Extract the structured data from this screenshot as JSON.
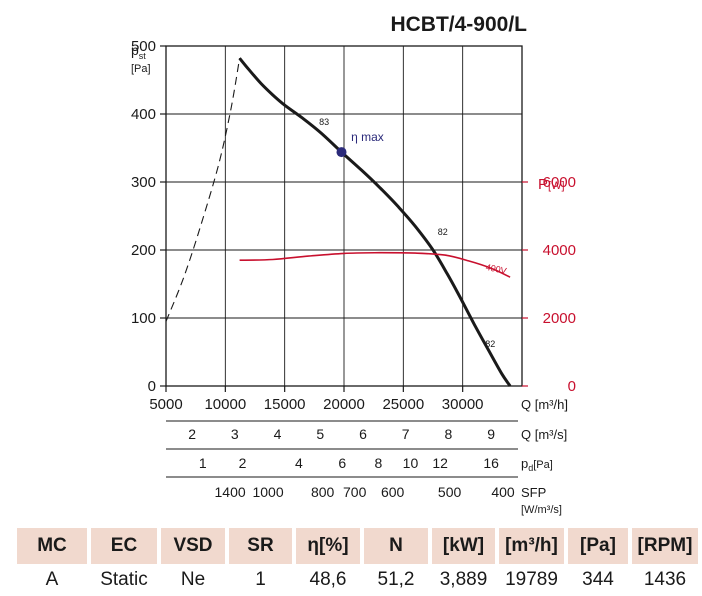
{
  "colors": {
    "curve": "#1a1a1a",
    "power": "#c8102e",
    "eta_point": "#2b2a7a",
    "table_header_bg": "#f1d9ce"
  },
  "chart_data": {
    "type": "line",
    "title": "HCBT/4-900/L",
    "ylabel": {
      "main": "p",
      "sub": "st",
      "unit": "[Pa]"
    },
    "y2label": {
      "main": "P",
      "unit": "[W]"
    },
    "xlim": [
      5000,
      35000
    ],
    "ylim": [
      0,
      500
    ],
    "y2lim": [
      0,
      10000
    ],
    "x_ticks": [
      5000,
      10000,
      15000,
      20000,
      25000,
      30000
    ],
    "x_tick_labels": [
      "5000",
      "10000",
      "15000",
      "20000",
      "25000",
      "30000"
    ],
    "x_unit_label": "Q [m³/h]",
    "y_ticks": [
      0,
      100,
      200,
      300,
      400,
      500
    ],
    "y_tick_labels": [
      "0",
      "100",
      "200",
      "300",
      "400",
      "500"
    ],
    "y2_ticks": [
      0,
      2000,
      4000,
      6000
    ],
    "y2_tick_labels": [
      "0",
      "2000",
      "4000",
      "6000"
    ],
    "grid": true,
    "series": [
      {
        "role": "pressure-curve",
        "x": [
          11200,
          12000,
          13000,
          14000,
          15000,
          16500,
          18000,
          19789,
          21500,
          23000,
          24500,
          26000,
          27500,
          28700,
          29800,
          31000,
          32200,
          33300,
          34000
        ],
        "y": [
          482,
          465,
          445,
          428,
          413,
          394,
          373,
          344,
          317,
          292,
          265,
          235,
          200,
          165,
          130,
          90,
          52,
          18,
          0
        ]
      },
      {
        "role": "stall-extension",
        "style": "dashed",
        "x": [
          5000,
          6500,
          8000,
          9500,
          10500,
          11200
        ],
        "y": [
          95,
          160,
          240,
          330,
          410,
          482
        ]
      },
      {
        "role": "power-curve",
        "axis": "y2",
        "x": [
          11200,
          14000,
          17000,
          20000,
          23000,
          26000,
          28500,
          30500,
          32500,
          34000
        ],
        "y": [
          3700,
          3720,
          3820,
          3900,
          3920,
          3910,
          3850,
          3680,
          3450,
          3200
        ]
      }
    ],
    "annotations": [
      {
        "text": "83",
        "x": 17900,
        "y": 384
      },
      {
        "text": "η max",
        "x": 20600,
        "y": 360
      },
      {
        "text": "82",
        "x": 27900,
        "y": 222
      },
      {
        "text": "82",
        "x": 31900,
        "y": 57
      },
      {
        "text": "400V",
        "x": 31900,
        "y": 171,
        "color": "power"
      }
    ],
    "eta_point": {
      "x": 19789,
      "y": 344
    },
    "secondary_scales": [
      {
        "unit": "Q [m³/s]",
        "ticks": [
          {
            "label": "2",
            "x": 7200
          },
          {
            "label": "3",
            "x": 10800
          },
          {
            "label": "4",
            "x": 14400
          },
          {
            "label": "5",
            "x": 18000
          },
          {
            "label": "6",
            "x": 21600
          },
          {
            "label": "7",
            "x": 25200
          },
          {
            "label": "8",
            "x": 28800
          },
          {
            "label": "9",
            "x": 32400
          }
        ]
      },
      {
        "unit": "p",
        "unit_sub": "d",
        "unit_tail": "[Pa]",
        "ticks": [
          {
            "label": "1",
            "x": 8100
          },
          {
            "label": "2",
            "x": 11450
          },
          {
            "label": "4",
            "x": 16200
          },
          {
            "label": "6",
            "x": 19850
          },
          {
            "label": "8",
            "x": 22900
          },
          {
            "label": "10",
            "x": 25600
          },
          {
            "label": "12",
            "x": 28100
          },
          {
            "label": "16",
            "x": 32400
          }
        ]
      },
      {
        "unit": "SFP",
        "unit_sub_line": "[W/m³/s]",
        "ticks": [
          {
            "label": "1400",
            "x": 10400
          },
          {
            "label": "1000",
            "x": 13600
          },
          {
            "label": "800",
            "x": 18200
          },
          {
            "label": "700",
            "x": 20900
          },
          {
            "label": "600",
            "x": 24100
          },
          {
            "label": "500",
            "x": 28900
          },
          {
            "label": "400",
            "x": 33400
          }
        ]
      }
    ]
  },
  "table": {
    "headers": [
      "MC",
      "EC",
      "VSD",
      "SR",
      "η[%]",
      "N",
      "[kW]",
      "[m³/h]",
      "[Pa]",
      "[RPM]"
    ],
    "values": [
      "A",
      "Static",
      "Ne",
      "1",
      "48,6",
      "51,2",
      "3,889",
      "19789",
      "344",
      "1436"
    ]
  }
}
